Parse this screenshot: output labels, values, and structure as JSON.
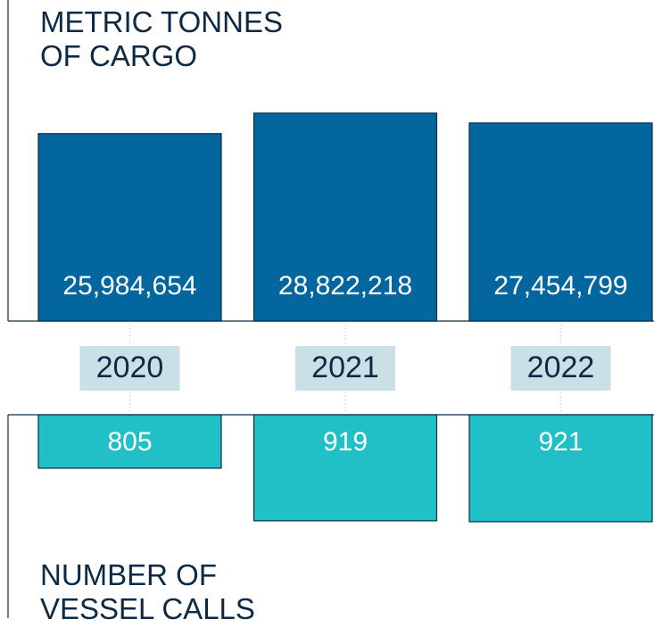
{
  "chart_data": {
    "type": "bar",
    "categories": [
      "2020",
      "2021",
      "2022"
    ],
    "series": [
      {
        "name": "METRIC TONNES\nOF CARGO",
        "color": "#03669f",
        "values": [
          25984654,
          28822218,
          27454799
        ],
        "value_labels": [
          "25,984,654",
          "28,822,218",
          "27,454,799"
        ]
      },
      {
        "name": "NUMBER OF\nVESSEL CALLS",
        "color": "#21bfc6",
        "values": [
          805,
          919,
          921
        ],
        "axis": "y2"
      }
    ],
    "ylim": [
      0,
      44500000
    ],
    "y2lim": [
      689,
      1130
    ],
    "y2_inverted": true
  }
}
